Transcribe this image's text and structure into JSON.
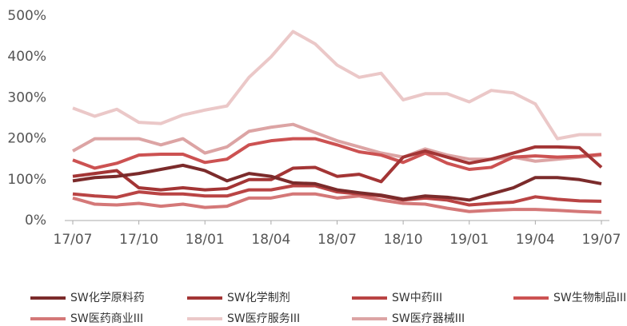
{
  "chart_data": {
    "type": "line",
    "categories": [
      "17/07",
      null,
      null,
      "17/10",
      null,
      null,
      "18/01",
      null,
      null,
      "18/04",
      null,
      null,
      "18/07",
      null,
      null,
      "18/10",
      null,
      null,
      "19/01",
      null,
      null,
      "19/04",
      null,
      null,
      "19/07"
    ],
    "ylim": [
      0,
      500
    ],
    "yticks": [
      {
        "value": 0,
        "label": "0%"
      },
      {
        "value": 100,
        "label": "100%"
      },
      {
        "value": 200,
        "label": "200%"
      },
      {
        "value": 300,
        "label": "300%"
      },
      {
        "value": 400,
        "label": "400%"
      },
      {
        "value": 500,
        "label": "500%"
      }
    ],
    "series": [
      {
        "name": "SW化学原料药",
        "color": "#7b2b2b",
        "values": [
          97,
          105,
          108,
          115,
          125,
          135,
          122,
          97,
          115,
          108,
          92,
          90,
          75,
          68,
          62,
          52,
          60,
          57,
          50,
          65,
          80,
          105,
          105,
          100,
          90
        ]
      },
      {
        "name": "SW化学制剂",
        "color": "#a33535",
        "values": [
          108,
          115,
          122,
          80,
          75,
          80,
          75,
          78,
          100,
          100,
          128,
          130,
          108,
          113,
          95,
          155,
          170,
          155,
          140,
          150,
          165,
          180,
          180,
          178,
          130
        ]
      },
      {
        "name": "SW中药III",
        "color": "#b94444",
        "values": [
          65,
          60,
          57,
          70,
          65,
          65,
          60,
          60,
          75,
          75,
          85,
          85,
          70,
          65,
          60,
          50,
          55,
          50,
          38,
          42,
          45,
          58,
          52,
          48,
          47
        ]
      },
      {
        "name": "SW生物制品III",
        "color": "#cc5252",
        "values": [
          148,
          128,
          140,
          160,
          162,
          162,
          142,
          150,
          185,
          195,
          200,
          200,
          185,
          168,
          160,
          142,
          165,
          140,
          125,
          130,
          155,
          158,
          155,
          157,
          162
        ]
      },
      {
        "name": "SW医药商业III",
        "color": "#d47878",
        "values": [
          55,
          40,
          38,
          42,
          35,
          40,
          32,
          35,
          55,
          55,
          65,
          65,
          55,
          60,
          50,
          42,
          40,
          30,
          22,
          25,
          27,
          27,
          25,
          22,
          20
        ]
      },
      {
        "name": "SW医疗服务III",
        "color": "#ebc8c8",
        "values": [
          275,
          255,
          272,
          240,
          237,
          258,
          270,
          280,
          350,
          400,
          462,
          432,
          380,
          350,
          360,
          295,
          310,
          310,
          290,
          318,
          312,
          285,
          200,
          210,
          210
        ]
      },
      {
        "name": "SW医疗器械III",
        "color": "#dca4a4",
        "values": [
          170,
          200,
          200,
          200,
          185,
          200,
          165,
          180,
          218,
          228,
          235,
          215,
          195,
          180,
          165,
          155,
          175,
          160,
          150,
          150,
          155,
          145,
          150,
          155,
          160
        ]
      }
    ]
  }
}
